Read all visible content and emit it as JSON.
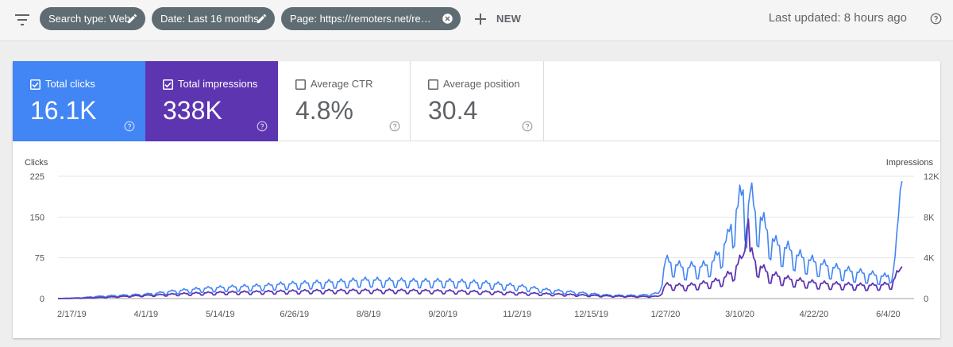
{
  "toolbar": {
    "chips": [
      {
        "label": "Search type: Web",
        "icon": "edit-icon"
      },
      {
        "label": "Date: Last 16 months",
        "icon": "edit-icon"
      },
      {
        "label": "Page: https://remoters.net/remo...",
        "icon": "close-icon"
      }
    ],
    "new_label": "NEW",
    "last_updated": "Last updated: 8 hours ago"
  },
  "metrics": [
    {
      "label": "Total clicks",
      "value": "16.1K",
      "checked": true,
      "color": "#4285f4"
    },
    {
      "label": "Total impressions",
      "value": "338K",
      "checked": true,
      "color": "#5e35b1"
    },
    {
      "label": "Average CTR",
      "value": "4.8%",
      "checked": false
    },
    {
      "label": "Average position",
      "value": "30.4",
      "checked": false
    }
  ],
  "chart_data": {
    "type": "line",
    "y_left_label": "Clicks",
    "y_right_label": "Impressions",
    "y_left_ticks": [
      "0",
      "75",
      "150",
      "225"
    ],
    "y_right_ticks": [
      "0",
      "4K",
      "8K",
      "12K"
    ],
    "ylim_left": [
      0,
      225
    ],
    "ylim_right": [
      0,
      12000
    ],
    "grid": true,
    "x_ticks": [
      "2/17/19",
      "4/1/19",
      "5/14/19",
      "6/26/19",
      "8/8/19",
      "9/20/19",
      "11/2/19",
      "12/15/19",
      "1/27/20",
      "3/10/20",
      "4/22/20",
      "6/4/20"
    ],
    "x_tick_days": [
      0,
      43,
      86,
      129,
      172,
      215,
      258,
      301,
      344,
      387,
      430,
      473
    ],
    "x_range_days": [
      -8,
      488
    ],
    "series": [
      {
        "name": "Clicks",
        "axis": "left",
        "color": "#4285f4",
        "points": [
          [
            -8,
            0
          ],
          [
            0,
            1
          ],
          [
            7,
            2
          ],
          [
            14,
            4
          ],
          [
            21,
            5
          ],
          [
            28,
            6
          ],
          [
            35,
            7
          ],
          [
            42,
            8
          ],
          [
            49,
            10
          ],
          [
            56,
            13
          ],
          [
            63,
            15
          ],
          [
            70,
            17
          ],
          [
            77,
            19
          ],
          [
            84,
            20
          ],
          [
            91,
            21
          ],
          [
            98,
            22
          ],
          [
            105,
            23
          ],
          [
            112,
            24
          ],
          [
            119,
            26
          ],
          [
            126,
            27
          ],
          [
            133,
            28
          ],
          [
            140,
            29
          ],
          [
            147,
            30
          ],
          [
            154,
            31
          ],
          [
            161,
            32
          ],
          [
            168,
            34
          ],
          [
            175,
            34
          ],
          [
            182,
            33
          ],
          [
            189,
            33
          ],
          [
            196,
            32
          ],
          [
            203,
            32
          ],
          [
            210,
            32
          ],
          [
            217,
            32
          ],
          [
            224,
            31
          ],
          [
            231,
            30
          ],
          [
            238,
            29
          ],
          [
            245,
            27
          ],
          [
            252,
            25
          ],
          [
            259,
            23
          ],
          [
            266,
            20
          ],
          [
            273,
            17
          ],
          [
            280,
            15
          ],
          [
            287,
            13
          ],
          [
            294,
            11
          ],
          [
            301,
            9
          ],
          [
            308,
            7
          ],
          [
            315,
            6
          ],
          [
            322,
            6
          ],
          [
            329,
            6
          ],
          [
            335,
            8
          ],
          [
            340,
            10
          ],
          [
            344,
            70
          ],
          [
            348,
            65
          ],
          [
            352,
            60
          ],
          [
            356,
            55
          ],
          [
            360,
            60
          ],
          [
            364,
            58
          ],
          [
            368,
            62
          ],
          [
            372,
            70
          ],
          [
            376,
            90
          ],
          [
            380,
            110
          ],
          [
            383,
            150
          ],
          [
            386,
            170
          ],
          [
            389,
            200
          ],
          [
            391,
            150
          ],
          [
            393,
            195
          ],
          [
            396,
            160
          ],
          [
            399,
            150
          ],
          [
            402,
            130
          ],
          [
            405,
            115
          ],
          [
            408,
            100
          ],
          [
            412,
            95
          ],
          [
            416,
            90
          ],
          [
            420,
            80
          ],
          [
            424,
            75
          ],
          [
            428,
            70
          ],
          [
            432,
            66
          ],
          [
            436,
            62
          ],
          [
            440,
            58
          ],
          [
            444,
            55
          ],
          [
            448,
            52
          ],
          [
            452,
            50
          ],
          [
            456,
            48
          ],
          [
            460,
            46
          ],
          [
            464,
            44
          ],
          [
            468,
            42
          ],
          [
            472,
            40
          ],
          [
            476,
            52
          ],
          [
            478,
            105
          ],
          [
            480,
            200
          ],
          [
            481,
            216
          ]
        ]
      },
      {
        "name": "Impressions",
        "axis": "right",
        "color": "#5e35b1",
        "points": [
          [
            -8,
            0
          ],
          [
            7,
            50
          ],
          [
            21,
            150
          ],
          [
            35,
            260
          ],
          [
            49,
            360
          ],
          [
            63,
            470
          ],
          [
            77,
            560
          ],
          [
            91,
            620
          ],
          [
            105,
            660
          ],
          [
            119,
            710
          ],
          [
            133,
            750
          ],
          [
            147,
            780
          ],
          [
            161,
            800
          ],
          [
            175,
            810
          ],
          [
            189,
            800
          ],
          [
            203,
            780
          ],
          [
            217,
            750
          ],
          [
            231,
            700
          ],
          [
            245,
            640
          ],
          [
            259,
            560
          ],
          [
            273,
            480
          ],
          [
            287,
            400
          ],
          [
            301,
            310
          ],
          [
            315,
            240
          ],
          [
            329,
            200
          ],
          [
            340,
            230
          ],
          [
            344,
            1350
          ],
          [
            350,
            1300
          ],
          [
            356,
            1250
          ],
          [
            362,
            1400
          ],
          [
            368,
            1550
          ],
          [
            374,
            1750
          ],
          [
            378,
            2050
          ],
          [
            382,
            2550
          ],
          [
            386,
            3400
          ],
          [
            389,
            4200
          ],
          [
            391,
            11000
          ],
          [
            393,
            4600
          ],
          [
            396,
            3700
          ],
          [
            400,
            3000
          ],
          [
            404,
            2450
          ],
          [
            410,
            2150
          ],
          [
            416,
            1900
          ],
          [
            422,
            1750
          ],
          [
            428,
            1600
          ],
          [
            434,
            1500
          ],
          [
            440,
            1450
          ],
          [
            446,
            1400
          ],
          [
            452,
            1350
          ],
          [
            458,
            1300
          ],
          [
            464,
            1300
          ],
          [
            470,
            1350
          ],
          [
            475,
            1500
          ],
          [
            478,
            2350
          ],
          [
            481,
            3150
          ]
        ]
      }
    ]
  }
}
